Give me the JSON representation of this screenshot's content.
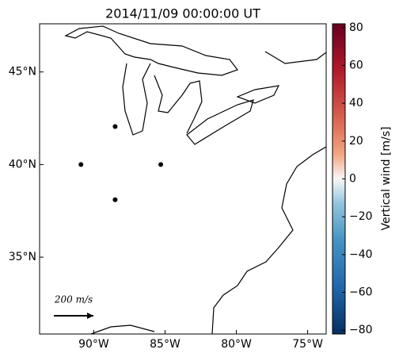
{
  "chart_data": {
    "type": "scatter",
    "title": "2014/11/09 00:00:00 UT",
    "x": [
      -88.5,
      -90.9,
      -85.3,
      -88.5
    ],
    "y": [
      42.05,
      40.0,
      40.0,
      38.1
    ],
    "color": "#000000",
    "xlim": [
      -93.8,
      -73.7
    ],
    "ylim": [
      30.85,
      47.6
    ],
    "xticks": [
      {
        "value": -90,
        "label": "90°W"
      },
      {
        "value": -85,
        "label": "85°W"
      },
      {
        "value": -80,
        "label": "80°W"
      },
      {
        "value": -75,
        "label": "75°W"
      }
    ],
    "yticks": [
      {
        "value": 35,
        "label": "35°N"
      },
      {
        "value": 40,
        "label": "40°N"
      },
      {
        "value": 45,
        "label": "45°N"
      }
    ],
    "quiver_key": "200 m/s",
    "colorbar": {
      "label": "Vertical wind [m/s]",
      "lim": [
        -82,
        82
      ],
      "ticks": [
        {
          "value": -80,
          "label": "−80"
        },
        {
          "value": -60,
          "label": "−60"
        },
        {
          "value": -40,
          "label": "−40"
        },
        {
          "value": -20,
          "label": "−20"
        },
        0,
        20,
        40,
        60,
        80
      ]
    }
  }
}
